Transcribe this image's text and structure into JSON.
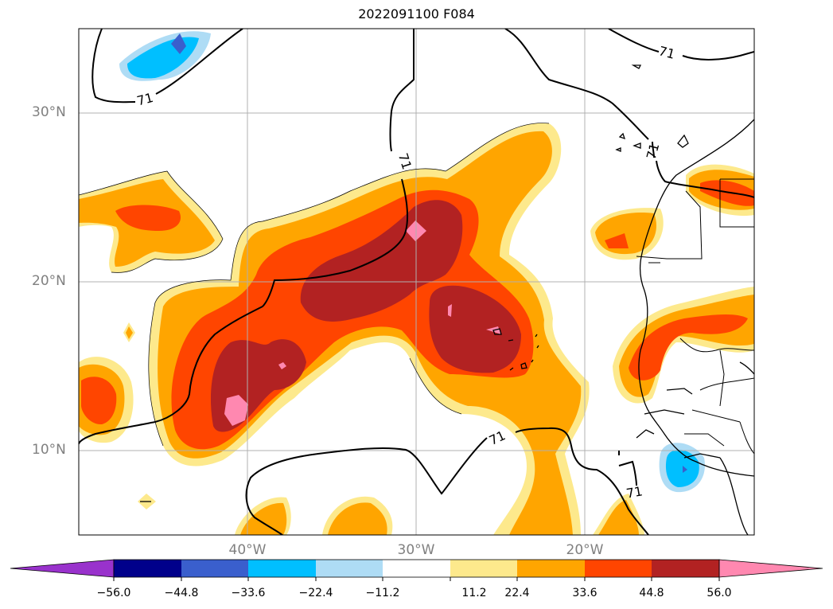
{
  "title": "2022091100 F084",
  "map": {
    "lat_labels": [
      "30°N",
      "20°N",
      "10°N"
    ],
    "lon_labels": [
      "40°W",
      "30°W",
      "20°W"
    ],
    "contour_label": "71",
    "colors": {
      "light_blue": "#aedcf5",
      "deep_sky_blue": "#00bfff",
      "royal_blue": "#3a5fcd",
      "light_yellow": "#fde98c",
      "orange": "#ffa500",
      "orange_red": "#ff4500",
      "firebrick": "#b22222",
      "pink": "#ff88b0"
    }
  },
  "colorbar": {
    "tick_labels": [
      "−56.0",
      "−44.8",
      "−33.6",
      "−22.4",
      "−11.2",
      "11.2",
      "22.4",
      "33.6",
      "44.8",
      "56.0"
    ],
    "colors": [
      "#9932cc",
      "#00008b",
      "#3a5fcd",
      "#00bfff",
      "#aedcf5",
      "#ffffff",
      "#fde98c",
      "#ffa500",
      "#ff4500",
      "#b22222",
      "#ff88b0"
    ]
  }
}
